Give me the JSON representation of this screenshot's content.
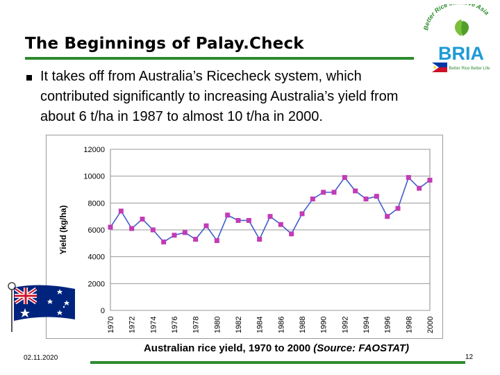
{
  "slide": {
    "title": "The Beginnings of Palay.Check",
    "bullet": "It takes off from Australia’s Ricecheck system, which contributed significantly to increasing Australia’s yield from about 6 t/ha in 1987 to almost 10 t/ha in 2000.",
    "caption_main": "Australian rice yield, 1970 to 2000 ",
    "caption_source": "(Source: FAOSTAT)",
    "date": "02.11.2020",
    "page_number": "12"
  },
  "logo": {
    "arc_text": "Better Rice Initiative Asia",
    "acronym": "BRIA",
    "tagline": "Better Rice Better Life",
    "colors": {
      "acronym": "#1e9ad6",
      "arc_text": "#2e8b2e",
      "leaf": "#7cbf3a"
    }
  },
  "colors": {
    "accent_rule": "#2e8b2e",
    "series_line": "#3f5cc9",
    "markers": "#c23bb6"
  },
  "chart_data": {
    "type": "line",
    "title": "",
    "xlabel": "",
    "ylabel": "Yield (kg/ha)",
    "ylim": [
      0,
      12000
    ],
    "yticks": [
      0,
      2000,
      4000,
      6000,
      8000,
      10000,
      12000
    ],
    "grid": "horizontal",
    "legend": "none",
    "x": [
      1970,
      1971,
      1972,
      1973,
      1974,
      1975,
      1976,
      1977,
      1978,
      1979,
      1980,
      1981,
      1982,
      1983,
      1984,
      1985,
      1986,
      1987,
      1988,
      1989,
      1990,
      1991,
      1992,
      1993,
      1994,
      1995,
      1996,
      1997,
      1998,
      1999,
      2000
    ],
    "xticks": [
      1970,
      1972,
      1974,
      1976,
      1978,
      1980,
      1982,
      1984,
      1986,
      1988,
      1990,
      1992,
      1994,
      1996,
      1998,
      2000
    ],
    "series": [
      {
        "values": [
          6200,
          7400,
          6100,
          6800,
          6000,
          5100,
          5600,
          5800,
          5300,
          6300,
          5200,
          7100,
          6700,
          6700,
          5300,
          7000,
          6400,
          5700,
          7200,
          8300,
          8800,
          8800,
          9900,
          8900,
          8300,
          8500,
          7000,
          7600,
          9900,
          9100,
          9700
        ]
      }
    ]
  }
}
